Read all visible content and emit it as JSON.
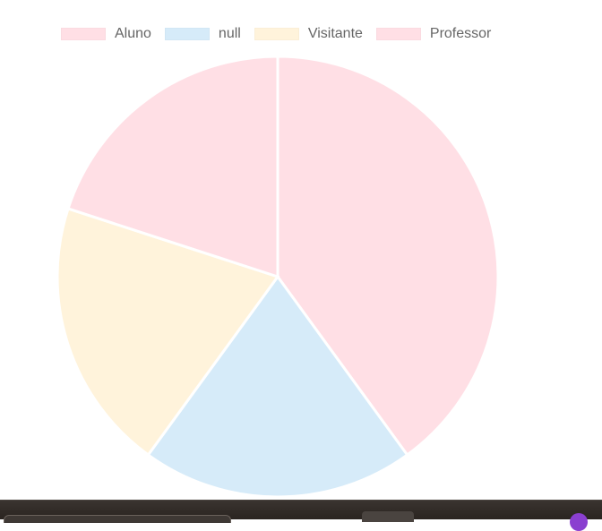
{
  "chart_data": {
    "type": "pie",
    "title": "",
    "legend": "top",
    "labels": [
      "Aluno",
      "null",
      "Visitante",
      "Professor"
    ],
    "values": [
      2,
      1,
      1,
      1
    ],
    "colors": [
      "#ffdfe5",
      "#d6ebf9",
      "#fff3db",
      "#ffdfe5"
    ],
    "legend_colors": [
      "#ffdfe5",
      "#d6ebf9",
      "#fff3db",
      "#ffdfe5"
    ]
  },
  "taskbar": {
    "color": "#2f2925"
  }
}
